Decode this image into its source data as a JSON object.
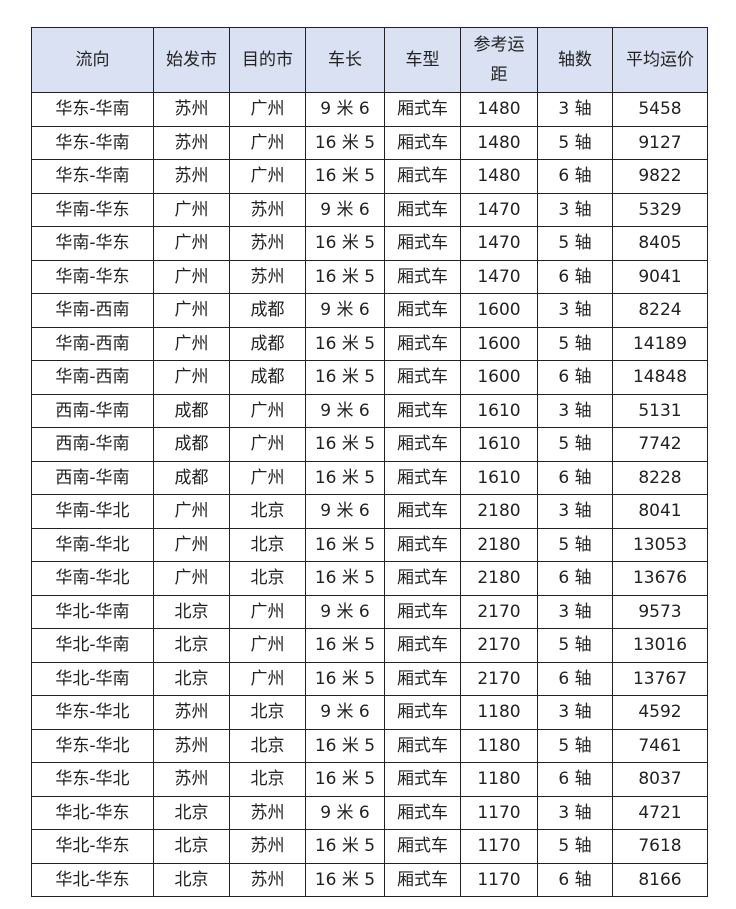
{
  "table": {
    "header_bg": "#d9e1f2",
    "columns": [
      "流向",
      "始发市",
      "目的市",
      "车长",
      "车型",
      "参考运距",
      "轴数",
      "平均运价"
    ],
    "rows": [
      [
        "华东-华南",
        "苏州",
        "广州",
        "9 米 6",
        "厢式车",
        "1480",
        "3 轴",
        "5458"
      ],
      [
        "华东-华南",
        "苏州",
        "广州",
        "16 米 5",
        "厢式车",
        "1480",
        "5 轴",
        "9127"
      ],
      [
        "华东-华南",
        "苏州",
        "广州",
        "16 米 5",
        "厢式车",
        "1480",
        "6 轴",
        "9822"
      ],
      [
        "华南-华东",
        "广州",
        "苏州",
        "9 米 6",
        "厢式车",
        "1470",
        "3 轴",
        "5329"
      ],
      [
        "华南-华东",
        "广州",
        "苏州",
        "16 米 5",
        "厢式车",
        "1470",
        "5 轴",
        "8405"
      ],
      [
        "华南-华东",
        "广州",
        "苏州",
        "16 米 5",
        "厢式车",
        "1470",
        "6 轴",
        "9041"
      ],
      [
        "华南-西南",
        "广州",
        "成都",
        "9 米 6",
        "厢式车",
        "1600",
        "3 轴",
        "8224"
      ],
      [
        "华南-西南",
        "广州",
        "成都",
        "16 米 5",
        "厢式车",
        "1600",
        "5 轴",
        "14189"
      ],
      [
        "华南-西南",
        "广州",
        "成都",
        "16 米 5",
        "厢式车",
        "1600",
        "6 轴",
        "14848"
      ],
      [
        "西南-华南",
        "成都",
        "广州",
        "9 米 6",
        "厢式车",
        "1610",
        "3 轴",
        "5131"
      ],
      [
        "西南-华南",
        "成都",
        "广州",
        "16 米 5",
        "厢式车",
        "1610",
        "5 轴",
        "7742"
      ],
      [
        "西南-华南",
        "成都",
        "广州",
        "16 米 5",
        "厢式车",
        "1610",
        "6 轴",
        "8228"
      ],
      [
        "华南-华北",
        "广州",
        "北京",
        "9 米 6",
        "厢式车",
        "2180",
        "3 轴",
        "8041"
      ],
      [
        "华南-华北",
        "广州",
        "北京",
        "16 米 5",
        "厢式车",
        "2180",
        "5 轴",
        "13053"
      ],
      [
        "华南-华北",
        "广州",
        "北京",
        "16 米 5",
        "厢式车",
        "2180",
        "6 轴",
        "13676"
      ],
      [
        "华北-华南",
        "北京",
        "广州",
        "9 米 6",
        "厢式车",
        "2170",
        "3 轴",
        "9573"
      ],
      [
        "华北-华南",
        "北京",
        "广州",
        "16 米 5",
        "厢式车",
        "2170",
        "5 轴",
        "13016"
      ],
      [
        "华北-华南",
        "北京",
        "广州",
        "16 米 5",
        "厢式车",
        "2170",
        "6 轴",
        "13767"
      ],
      [
        "华东-华北",
        "苏州",
        "北京",
        "9 米 6",
        "厢式车",
        "1180",
        "3 轴",
        "4592"
      ],
      [
        "华东-华北",
        "苏州",
        "北京",
        "16 米 5",
        "厢式车",
        "1180",
        "5 轴",
        "7461"
      ],
      [
        "华东-华北",
        "苏州",
        "北京",
        "16 米 5",
        "厢式车",
        "1180",
        "6 轴",
        "8037"
      ],
      [
        "华北-华东",
        "北京",
        "苏州",
        "9 米 6",
        "厢式车",
        "1170",
        "3 轴",
        "4721"
      ],
      [
        "华北-华东",
        "北京",
        "苏州",
        "16 米 5",
        "厢式车",
        "1170",
        "5 轴",
        "7618"
      ],
      [
        "华北-华东",
        "北京",
        "苏州",
        "16 米 5",
        "厢式车",
        "1170",
        "6 轴",
        "8166"
      ]
    ]
  }
}
